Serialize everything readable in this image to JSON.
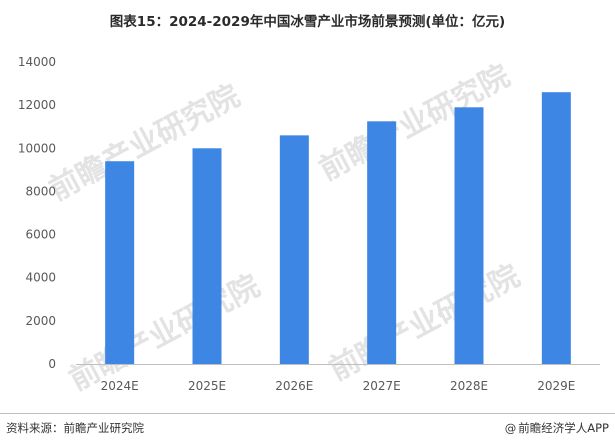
{
  "title": "图表15：2024-2029年中国冰雪产业市场前景预测(单位：亿元)",
  "footer": {
    "source": "资料来源：前瞻产业研究院",
    "brand": "前瞻经济学人APP",
    "brand_icon": "at-sign-icon"
  },
  "watermark": "前瞻产业研究院",
  "colors": {
    "bar": "#3D86E4",
    "axis": "#bfbfbf",
    "text": "#595959"
  },
  "chart_data": {
    "type": "bar",
    "title": "图表15：2024-2029年中国冰雪产业市场前景预测(单位：亿元)",
    "categories": [
      "2024E",
      "2025E",
      "2026E",
      "2027E",
      "2028E",
      "2029E"
    ],
    "values": [
      9400,
      10000,
      10600,
      11250,
      11900,
      12600
    ],
    "ylim": [
      0,
      14000
    ],
    "yticks": [
      0,
      2000,
      4000,
      6000,
      8000,
      10000,
      12000,
      14000
    ],
    "ytick_labels": [
      "0",
      "2000",
      "4000",
      "6000",
      "8000",
      "10000",
      "12000",
      "14000"
    ],
    "grid": false,
    "legend": "none",
    "xlabel": "",
    "ylabel": ""
  }
}
